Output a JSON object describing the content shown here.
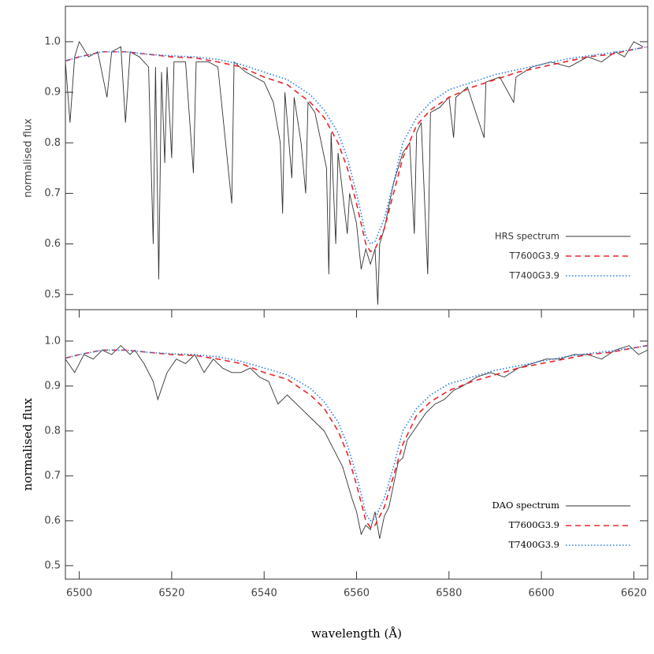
{
  "chart_data": [
    {
      "type": "line",
      "ylabel": "normalised flux",
      "xlim": [
        6497,
        6623
      ],
      "ylim": [
        0.47,
        1.07
      ],
      "yticks": [
        0.5,
        0.6,
        0.7,
        0.8,
        0.9,
        {
          "value": 1,
          "label": "1.0"
        }
      ],
      "legend": "lower right",
      "series": [
        {
          "name": "HRS spectrum",
          "color": "#333333",
          "style": "solid",
          "x": [
            6497,
            6498,
            6499,
            6500,
            6502,
            6504,
            6506,
            6507,
            6509,
            6510,
            6511,
            6513,
            6515,
            6516,
            6516.5,
            6517.2,
            6517.8,
            6518.5,
            6519,
            6520,
            6520.5,
            6523,
            6524.7,
            6525.3,
            6528,
            6530,
            6533,
            6533.5,
            6536,
            6540,
            6542,
            6543.5,
            6544,
            6544.5,
            6546,
            6546.5,
            6548,
            6549,
            6549.5,
            6551,
            6553.5,
            6554,
            6554.5,
            6555.5,
            6556,
            6558,
            6558.5,
            6560,
            6561,
            6562,
            6563,
            6564,
            6564.6,
            6565,
            6566,
            6568,
            6570,
            6571.5,
            6572.5,
            6573,
            6574,
            6575.4,
            6576,
            6578,
            6580,
            6581,
            6581.5,
            6584,
            6587.6,
            6588,
            6591,
            6594,
            6594.5,
            6598,
            6602,
            6606,
            6610,
            6613,
            6616,
            6618,
            6620,
            6622
          ],
          "values": [
            0.96,
            0.84,
            0.97,
            1.0,
            0.97,
            0.98,
            0.89,
            0.98,
            0.99,
            0.84,
            0.98,
            0.97,
            0.95,
            0.6,
            0.95,
            0.53,
            0.94,
            0.76,
            0.95,
            0.77,
            0.96,
            0.96,
            0.74,
            0.96,
            0.96,
            0.95,
            0.68,
            0.96,
            0.94,
            0.92,
            0.88,
            0.8,
            0.66,
            0.9,
            0.73,
            0.89,
            0.8,
            0.7,
            0.88,
            0.86,
            0.75,
            0.54,
            0.82,
            0.6,
            0.78,
            0.62,
            0.7,
            0.64,
            0.55,
            0.59,
            0.56,
            0.59,
            0.48,
            0.6,
            0.63,
            0.72,
            0.78,
            0.8,
            0.62,
            0.82,
            0.84,
            0.54,
            0.86,
            0.87,
            0.89,
            0.81,
            0.89,
            0.91,
            0.81,
            0.92,
            0.93,
            0.88,
            0.93,
            0.95,
            0.96,
            0.95,
            0.97,
            0.96,
            0.98,
            0.97,
            1.0,
            0.99
          ]
        },
        {
          "name": "T7600G3.9",
          "color": "#e8262b",
          "style": "dashed",
          "x": [
            6497,
            6500,
            6505,
            6510,
            6515,
            6520,
            6525,
            6530,
            6535,
            6540,
            6545,
            6550,
            6553,
            6556,
            6558,
            6560,
            6561,
            6562,
            6563,
            6564,
            6566,
            6568,
            6570,
            6573,
            6576,
            6580,
            6585,
            6590,
            6595,
            6600,
            6605,
            6610,
            6615,
            6620,
            6623
          ],
          "values": [
            0.962,
            0.97,
            0.98,
            0.98,
            0.975,
            0.97,
            0.968,
            0.96,
            0.95,
            0.93,
            0.915,
            0.88,
            0.85,
            0.8,
            0.75,
            0.68,
            0.64,
            0.6,
            0.585,
            0.59,
            0.63,
            0.7,
            0.77,
            0.835,
            0.865,
            0.89,
            0.91,
            0.925,
            0.94,
            0.95,
            0.96,
            0.97,
            0.975,
            0.985,
            0.99
          ]
        },
        {
          "name": "T7400G3.9",
          "color": "#2b7de9",
          "style": "dotted",
          "x": [
            6497,
            6500,
            6505,
            6510,
            6515,
            6520,
            6525,
            6530,
            6535,
            6540,
            6545,
            6550,
            6553,
            6556,
            6558,
            6560,
            6561,
            6562,
            6563,
            6564,
            6566,
            6568,
            6570,
            6573,
            6576,
            6580,
            6585,
            6590,
            6595,
            6600,
            6605,
            6610,
            6615,
            6620,
            6623
          ],
          "values": [
            0.962,
            0.97,
            0.98,
            0.98,
            0.975,
            0.972,
            0.97,
            0.965,
            0.955,
            0.94,
            0.925,
            0.895,
            0.865,
            0.82,
            0.77,
            0.7,
            0.66,
            0.615,
            0.6,
            0.605,
            0.65,
            0.72,
            0.8,
            0.85,
            0.88,
            0.905,
            0.92,
            0.935,
            0.945,
            0.955,
            0.965,
            0.972,
            0.978,
            0.985,
            0.99
          ]
        }
      ]
    },
    {
      "type": "line",
      "xlabel": "wavelength (Å)",
      "ylabel": "normalised flux",
      "xlim": [
        6497,
        6623
      ],
      "ylim": [
        0.47,
        1.07
      ],
      "xticks": [
        6500,
        6520,
        6540,
        6560,
        6580,
        6600,
        6620
      ],
      "yticks": [
        0.5,
        0.6,
        0.7,
        0.8,
        0.9,
        {
          "value": 1,
          "label": "1.0"
        }
      ],
      "legend": "lower right",
      "series": [
        {
          "name": "DAO spectrum",
          "color": "#333333",
          "style": "solid",
          "x": [
            6497,
            6499,
            6501,
            6503,
            6505,
            6507,
            6509,
            6511,
            6512,
            6514,
            6516,
            6517,
            6519,
            6521,
            6523,
            6525,
            6527,
            6529,
            6531,
            6533,
            6535,
            6537,
            6539,
            6541,
            6543,
            6545,
            6547,
            6549,
            6551,
            6553,
            6555,
            6557,
            6559,
            6560,
            6561,
            6562,
            6563,
            6564,
            6565,
            6566,
            6567,
            6568,
            6569,
            6570,
            6571,
            6573,
            6575,
            6577,
            6579,
            6581,
            6583,
            6586,
            6589,
            6592,
            6595,
            6598,
            6601,
            6604,
            6607,
            6610,
            6613,
            6616,
            6619,
            6621,
            6623
          ],
          "values": [
            0.96,
            0.93,
            0.97,
            0.96,
            0.98,
            0.97,
            0.99,
            0.97,
            0.98,
            0.95,
            0.91,
            0.87,
            0.93,
            0.96,
            0.95,
            0.97,
            0.93,
            0.96,
            0.94,
            0.93,
            0.93,
            0.94,
            0.92,
            0.91,
            0.86,
            0.88,
            0.86,
            0.84,
            0.82,
            0.8,
            0.76,
            0.72,
            0.65,
            0.62,
            0.57,
            0.59,
            0.58,
            0.62,
            0.56,
            0.61,
            0.63,
            0.68,
            0.73,
            0.74,
            0.78,
            0.81,
            0.84,
            0.86,
            0.87,
            0.89,
            0.9,
            0.92,
            0.93,
            0.92,
            0.94,
            0.95,
            0.96,
            0.96,
            0.97,
            0.97,
            0.96,
            0.98,
            0.99,
            0.97,
            0.98
          ]
        },
        {
          "name": "T7600G3.9",
          "color": "#e8262b",
          "style": "dashed",
          "x": [
            6497,
            6500,
            6505,
            6510,
            6515,
            6520,
            6525,
            6530,
            6535,
            6540,
            6545,
            6550,
            6553,
            6556,
            6558,
            6560,
            6561,
            6562,
            6563,
            6564,
            6566,
            6568,
            6570,
            6573,
            6576,
            6580,
            6585,
            6590,
            6595,
            6600,
            6605,
            6610,
            6615,
            6620,
            6623
          ],
          "values": [
            0.962,
            0.97,
            0.98,
            0.98,
            0.975,
            0.97,
            0.968,
            0.96,
            0.95,
            0.93,
            0.915,
            0.88,
            0.85,
            0.8,
            0.75,
            0.68,
            0.64,
            0.6,
            0.585,
            0.59,
            0.63,
            0.7,
            0.77,
            0.835,
            0.865,
            0.89,
            0.91,
            0.925,
            0.94,
            0.95,
            0.96,
            0.97,
            0.975,
            0.985,
            0.99
          ]
        },
        {
          "name": "T7400G3.9",
          "color": "#2b7de9",
          "style": "dotted",
          "x": [
            6497,
            6500,
            6505,
            6510,
            6515,
            6520,
            6525,
            6530,
            6535,
            6540,
            6545,
            6550,
            6553,
            6556,
            6558,
            6560,
            6561,
            6562,
            6563,
            6564,
            6566,
            6568,
            6570,
            6573,
            6576,
            6580,
            6585,
            6590,
            6595,
            6600,
            6605,
            6610,
            6615,
            6620,
            6623
          ],
          "values": [
            0.962,
            0.97,
            0.98,
            0.98,
            0.975,
            0.972,
            0.97,
            0.965,
            0.955,
            0.94,
            0.925,
            0.895,
            0.865,
            0.82,
            0.77,
            0.7,
            0.66,
            0.615,
            0.6,
            0.605,
            0.65,
            0.72,
            0.8,
            0.85,
            0.88,
            0.905,
            0.92,
            0.935,
            0.945,
            0.955,
            0.965,
            0.972,
            0.978,
            0.985,
            0.99
          ]
        }
      ]
    }
  ]
}
